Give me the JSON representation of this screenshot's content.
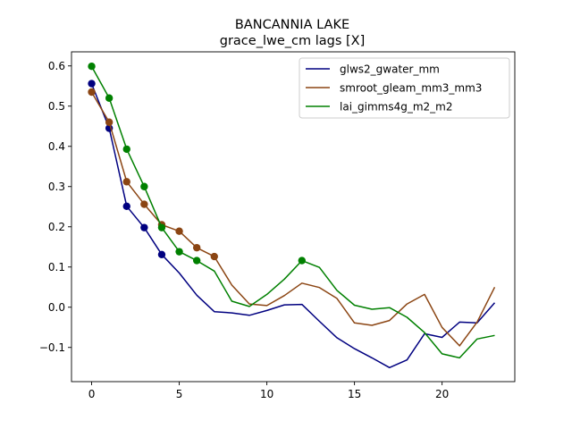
{
  "chart_data": {
    "type": "line",
    "title": "BANCANNIA LAKE",
    "subtitle": "grace_lwe_cm lags [X]",
    "xlabel": "",
    "ylabel": "",
    "xlim": [
      -1.15,
      24.15
    ],
    "ylim": [
      -0.185,
      0.635
    ],
    "xticks": [
      0,
      5,
      10,
      15,
      20
    ],
    "yticks": [
      -0.1,
      0.0,
      0.1,
      0.2,
      0.3,
      0.4,
      0.5,
      0.6
    ],
    "ytick_labels": [
      "−0.1",
      "0.0",
      "0.1",
      "0.2",
      "0.3",
      "0.4",
      "0.5",
      "0.6"
    ],
    "grid": false,
    "legend_position": "top-right",
    "x": [
      0,
      1,
      2,
      3,
      4,
      5,
      6,
      7,
      8,
      9,
      10,
      11,
      12,
      13,
      14,
      15,
      16,
      17,
      18,
      19,
      20,
      21,
      22,
      23
    ],
    "series": [
      {
        "name": "glws2_gwater_mm",
        "color": "#000080",
        "values": [
          0.556,
          0.445,
          0.251,
          0.198,
          0.131,
          0.085,
          0.03,
          -0.011,
          -0.014,
          -0.02,
          -0.008,
          0.006,
          0.007,
          -0.035,
          -0.076,
          -0.103,
          -0.126,
          -0.15,
          -0.131,
          -0.066,
          -0.075,
          -0.037,
          -0.039,
          0.011
        ],
        "markers": [
          0,
          1,
          2,
          3,
          4
        ]
      },
      {
        "name": "smroot_gleam_mm3_mm3",
        "color": "#8B4513",
        "values": [
          0.535,
          0.46,
          0.312,
          0.256,
          0.205,
          0.189,
          0.148,
          0.126,
          0.055,
          0.008,
          0.004,
          0.029,
          0.06,
          0.049,
          0.022,
          -0.039,
          -0.045,
          -0.033,
          0.008,
          0.032,
          -0.05,
          -0.096,
          -0.037,
          0.05
        ],
        "markers": [
          0,
          1,
          2,
          3,
          4,
          5,
          6,
          7
        ]
      },
      {
        "name": "lai_gimms4g_m2_m2",
        "color": "#008000",
        "values": [
          0.599,
          0.52,
          0.393,
          0.3,
          0.198,
          0.138,
          0.116,
          0.09,
          0.015,
          0.002,
          0.032,
          0.07,
          0.116,
          0.099,
          0.042,
          0.005,
          -0.005,
          -0.001,
          -0.025,
          -0.063,
          -0.116,
          -0.126,
          -0.079,
          -0.07
        ],
        "markers": [
          0,
          1,
          2,
          3,
          4,
          5,
          6,
          12
        ]
      }
    ]
  }
}
